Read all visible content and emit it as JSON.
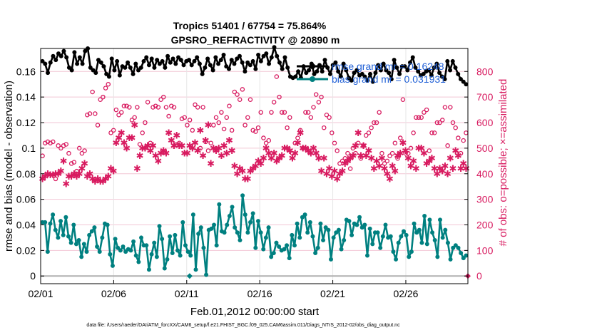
{
  "chart_data": {
    "type": "line",
    "title": "Tropics 51401 / 67754 = 75.864%",
    "subtitle": "GPSRO_REFRACTIVITY @ 20890 m",
    "xlabel": "Feb.01,2012 00:00:00 start",
    "ylabel": "rmse and bias (model - observation)",
    "y2label": "# of obs: o=possible; ×=assimilated",
    "footer": "data file: /Users/raeder/DAI/ATM_forcXX/CAM6_setup/f.e21.FHIST_BGC.f09_025.CAM6assim.011/Diags_NTrS_2012-02/obs_diag_output.nc",
    "x_tick_labels": [
      "02/01",
      "02/06",
      "02/11",
      "02/16",
      "02/21",
      "02/26"
    ],
    "x_tick_days": [
      0,
      5,
      10,
      15,
      20,
      25
    ],
    "xlim": [
      0,
      29.25
    ],
    "ylim": [
      -0.006,
      0.178
    ],
    "y_ticks": [
      0,
      0.02,
      0.04,
      0.06,
      0.08,
      0.1,
      0.12,
      0.14,
      0.16
    ],
    "y_tick_labels": [
      "0",
      "0.02",
      "0.04",
      "0.06",
      "0.08",
      "0.1",
      "0.12",
      "0.14",
      "0.16"
    ],
    "y2lim": [
      -30,
      890
    ],
    "y2_ticks": [
      0,
      100,
      200,
      300,
      400,
      500,
      600,
      700,
      800
    ],
    "y2_tick_labels": [
      "0",
      "100",
      "200",
      "300",
      "400",
      "500",
      "600",
      "700",
      "800"
    ],
    "legend": [
      {
        "name": "rmse grand mr = 0.16248",
        "color": "#000000"
      },
      {
        "name": "bias grand mr = 0.031931",
        "color": "#008080"
      }
    ],
    "series": [
      {
        "name": "rmse",
        "color": "#000000",
        "axis": "left",
        "values": [
          0.168,
          0.166,
          0.159,
          0.167,
          0.172,
          0.169,
          0.174,
          0.172,
          0.176,
          0.171,
          0.163,
          0.161,
          0.175,
          0.166,
          0.171,
          0.166,
          0.176,
          0.178,
          0.163,
          0.161,
          0.159,
          0.169,
          0.167,
          0.164,
          0.158,
          0.156,
          0.17,
          0.161,
          0.168,
          0.157,
          0.164,
          0.163,
          0.167,
          0.163,
          0.158,
          0.166,
          0.161,
          0.163,
          0.168,
          0.171,
          0.165,
          0.17,
          0.163,
          0.169,
          0.166,
          0.168,
          0.163,
          0.172,
          0.167,
          0.17,
          0.166,
          0.171,
          0.169,
          0.165,
          0.168,
          0.169,
          0.165,
          0.168,
          0.171,
          0.166,
          0.158,
          0.163,
          0.17,
          0.165,
          0.161,
          0.171,
          0.166,
          0.169,
          0.173,
          0.164,
          0.162,
          0.169,
          0.166,
          0.17,
          0.172,
          0.167,
          0.16,
          0.167,
          0.165,
          0.168,
          0.162,
          0.173,
          0.168,
          0.172,
          0.174,
          0.166,
          0.171,
          0.179,
          0.172,
          0.167,
          0.162,
          0.171,
          0.163,
          0.156,
          0.155,
          0.156,
          0.16,
          0.155,
          0.164,
          0.159,
          0.161,
          0.166,
          0.158,
          0.16,
          0.165,
          0.16,
          0.169,
          0.163,
          0.158,
          0.165,
          0.167,
          0.16,
          0.156,
          0.166,
          0.161,
          0.155,
          0.153,
          0.159,
          0.161,
          0.157,
          0.158,
          0.156,
          0.153,
          0.158,
          0.152,
          0.159,
          0.165,
          0.161,
          0.166,
          0.161,
          0.159,
          0.154,
          0.169,
          0.163,
          0.158,
          0.164,
          0.164,
          0.161,
          0.167,
          0.171,
          0.163,
          0.16,
          0.157,
          0.158,
          0.16,
          0.161,
          0.157,
          0.163,
          0.166,
          0.159,
          0.156,
          0.154,
          0.168,
          0.161,
          0.168,
          0.163,
          0.158,
          0.154,
          0.152,
          0.15
        ]
      },
      {
        "name": "bias",
        "color": "#008080",
        "axis": "left",
        "values": [
          0.042,
          0.042,
          0.019,
          0.041,
          0.048,
          0.036,
          0.03,
          0.043,
          0.032,
          0.046,
          0.031,
          0.026,
          0.04,
          0.025,
          0.028,
          0.015,
          0.025,
          0.019,
          0.032,
          0.035,
          0.038,
          0.023,
          0.019,
          0.03,
          0.041,
          0.04,
          0.017,
          0.008,
          0.029,
          0.022,
          0.02,
          0.023,
          0.019,
          0.021,
          0.02,
          0.027,
          0.016,
          0.011,
          0.03,
          0.024,
          0.024,
          0.005,
          0.017,
          0.026,
          0.015,
          0.039,
          0.029,
          0.006,
          0.013,
          0.031,
          0.018,
          0.032,
          0.02,
          0.016,
          0.042,
          0.024,
          0.019,
          0.016,
          0.048,
          0.005,
          0.033,
          0.038,
          0.022,
          0.001,
          0.036,
          0.037,
          0.04,
          0.024,
          0.056,
          0.035,
          0.034,
          0.04,
          0.047,
          0.054,
          0.038,
          0.034,
          0.028,
          0.063,
          0.048,
          0.034,
          0.042,
          0.049,
          0.022,
          0.043,
          0.034,
          0.021,
          0.03,
          0.038,
          0.015,
          0.018,
          0.026,
          0.023,
          0.02,
          0.021,
          0.024,
          0.014,
          0.032,
          0.024,
          0.041,
          0.03,
          0.046,
          0.048,
          0.034,
          0.042,
          0.031,
          0.018,
          0.022,
          0.041,
          0.028,
          0.038,
          0.036,
          0.013,
          0.03,
          0.034,
          0.036,
          0.021,
          0.028,
          0.044,
          0.043,
          0.032,
          0.041,
          0.04,
          0.046,
          0.038,
          0.04,
          0.016,
          0.037,
          0.025,
          0.034,
          0.034,
          0.022,
          0.031,
          0.04,
          0.03,
          0.031,
          0.019,
          0.013,
          0.026,
          0.031,
          0.035,
          0.032,
          0.015,
          0.019,
          0.041,
          0.034,
          0.036,
          0.026,
          0.047,
          0.025,
          0.044,
          0.034,
          0.028,
          0.015,
          0.044,
          0.03,
          0.036,
          0.026,
          0.013,
          0.022,
          0.024,
          0.022,
          0.018,
          0.014,
          0.016
        ]
      },
      {
        "name": "possible",
        "color": "#d81b60",
        "axis": "right",
        "marker": "o",
        "values": [
          470,
          520,
          525,
          520,
          525,
          380,
          510,
          500,
          510,
          515,
          480,
          440,
          445,
          410,
          500,
          480,
          490,
          630,
          635,
          720,
          635,
          590,
          690,
          700,
          735,
          750,
          560,
          570,
          650,
          630,
          640,
          665,
          665,
          660,
          610,
          620,
          660,
          515,
          560,
          600,
          680,
          520,
          660,
          665,
          660,
          690,
          700,
          660,
          625,
          665,
          660,
          515,
          520,
          615,
          620,
          590,
          610,
          570,
          670,
          660,
          500,
          660,
          525,
          490,
          520,
          590,
          620,
          600,
          640,
          575,
          620,
          665,
          570,
          720,
          710,
          690,
          730,
          590,
          620,
          690,
          570,
          565,
          580,
          640,
          540,
          520,
          530,
          640,
          680,
          780,
          700,
          640,
          640,
          580,
          620,
          480,
          520,
          540,
          570,
          500,
          640,
          640,
          620,
          660,
          710,
          680,
          700,
          580,
          630,
          620,
          560,
          520,
          490,
          440,
          450,
          460,
          480,
          420,
          500,
          480,
          520,
          460,
          510,
          550,
          560,
          580,
          600,
          600,
          640,
          480,
          440,
          450,
          470,
          480,
          520,
          460,
          540,
          690,
          480,
          480,
          500,
          560,
          620,
          620,
          620,
          640,
          650,
          490,
          560,
          560,
          600,
          600,
          610,
          660,
          510,
          660,
          600,
          580,
          540,
          480,
          530,
          560
        ]
      },
      {
        "name": "assimilated",
        "color": "#d81b60",
        "axis": "right",
        "marker": "x",
        "values": [
          380,
          390,
          400,
          395,
          395,
          400,
          400,
          410,
          450,
          360,
          390,
          390,
          400,
          390,
          400,
          420,
          440,
          390,
          400,
          380,
          370,
          380,
          370,
          370,
          380,
          390,
          420,
          410,
          520,
          540,
          560,
          520,
          500,
          540,
          540,
          590,
          420,
          470,
          500,
          500,
          510,
          490,
          510,
          470,
          450,
          480,
          490,
          480,
          560,
          530,
          510,
          550,
          510,
          510,
          480,
          480,
          510,
          500,
          520,
          490,
          570,
          470,
          530,
          590,
          440,
          500,
          490,
          500,
          470,
          510,
          480,
          530,
          490,
          430,
          400,
          420,
          410,
          380,
          380,
          410,
          420,
          430,
          450,
          440,
          460,
          500,
          480,
          460,
          480,
          450,
          460,
          470,
          500,
          500,
          490,
          460,
          480,
          520,
          560,
          500,
          500,
          490,
          480,
          500,
          480,
          460,
          410,
          460,
          400,
          420,
          390,
          410,
          380,
          400,
          410,
          440,
          450,
          460,
          470,
          510,
          560,
          470,
          510,
          470,
          490,
          460,
          420,
          450,
          430,
          460,
          420,
          400,
          380,
          430,
          410,
          470,
          480,
          520,
          490,
          460,
          430,
          450,
          420,
          500,
          500,
          480,
          440,
          450,
          460,
          420,
          400,
          420,
          410,
          430,
          400,
          460,
          420,
          490,
          470,
          420,
          440,
          420
        ]
      }
    ]
  }
}
